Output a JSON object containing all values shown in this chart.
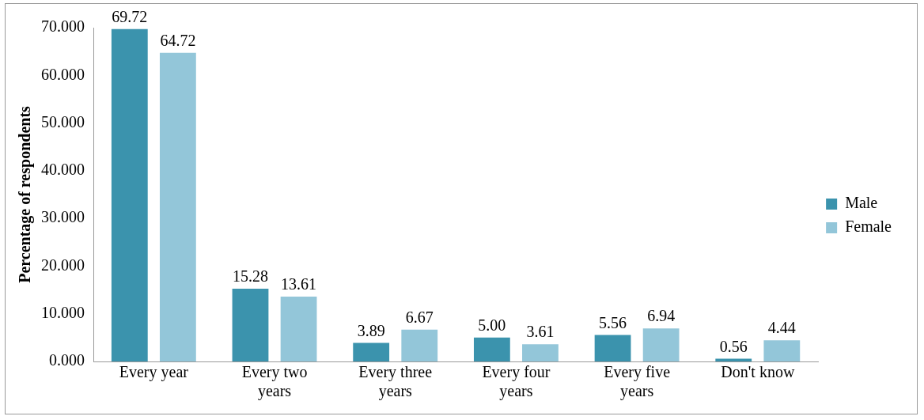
{
  "chart_data": {
    "type": "bar",
    "ylabel": "Percentage of respondents",
    "categories": [
      "Every year",
      "Every two years",
      "Every three years",
      "Every four years",
      "Every five years",
      "Don't know"
    ],
    "series": [
      {
        "name": "Male",
        "color": "#3b93ad",
        "values": [
          69.72,
          15.28,
          3.89,
          5.0,
          5.56,
          0.56
        ],
        "value_labels": [
          "69.72",
          "15.28",
          "3.89",
          "5.00",
          "5.56",
          "0.56"
        ]
      },
      {
        "name": "Female",
        "color": "#93c6d9",
        "values": [
          64.72,
          13.61,
          6.67,
          3.61,
          6.94,
          4.44
        ],
        "value_labels": [
          "64.72",
          "13.61",
          "6.67",
          "3.61",
          "6.94",
          "4.44"
        ]
      }
    ],
    "ylim": [
      0,
      70
    ],
    "yticks": [
      {
        "value": 0,
        "label": "0.000"
      },
      {
        "value": 10,
        "label": "10.000"
      },
      {
        "value": 20,
        "label": "20.000"
      },
      {
        "value": 30,
        "label": "30.000"
      },
      {
        "value": 40,
        "label": "40.000"
      },
      {
        "value": 50,
        "label": "50.000"
      },
      {
        "value": 60,
        "label": "60.000"
      },
      {
        "value": 70,
        "label": "70.000"
      }
    ],
    "grid": false,
    "legend": "right"
  }
}
